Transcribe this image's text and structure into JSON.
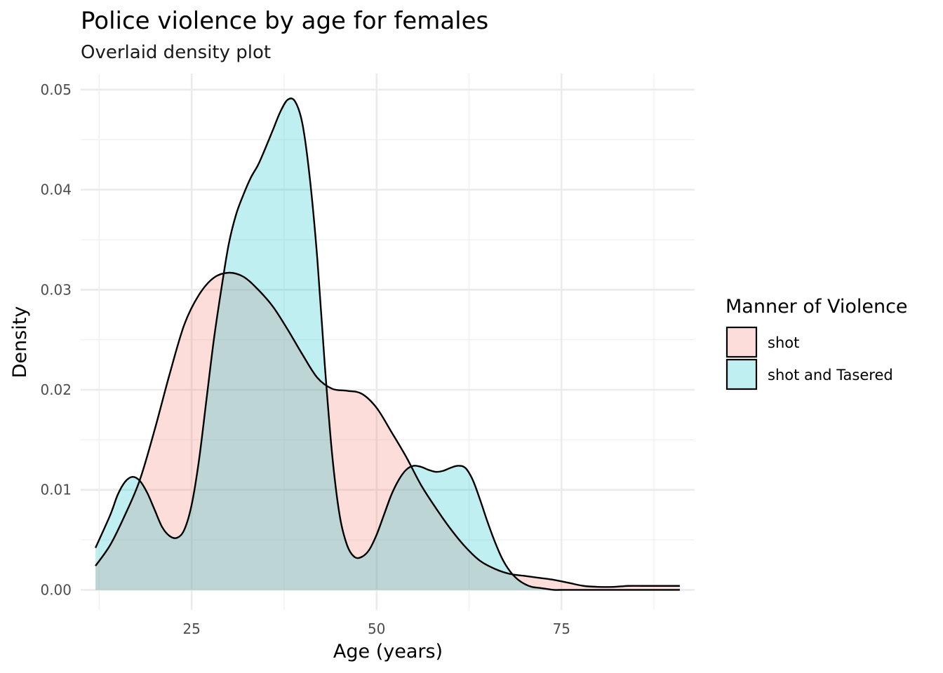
{
  "chart_data": {
    "type": "area",
    "title": "Police violence by age for females",
    "subtitle": "Overlaid density plot",
    "xlabel": "Age (years)",
    "ylabel": "Density",
    "xlim": [
      10,
      93
    ],
    "ylim": [
      -0.002,
      0.0516
    ],
    "x_ticks": [
      25,
      50,
      75
    ],
    "y_ticks": [
      0.0,
      0.01,
      0.02,
      0.03,
      0.04,
      0.05
    ],
    "x_tick_labels": [
      "25",
      "50",
      "75"
    ],
    "y_tick_labels": [
      "0.00",
      "0.01",
      "0.02",
      "0.03",
      "0.04",
      "0.05"
    ],
    "grid": true,
    "legend": {
      "title": "Manner of Violence",
      "placement": "right"
    },
    "series": [
      {
        "name": "shot",
        "color": "#F8766D",
        "x": [
          12,
          14,
          16,
          18,
          20,
          22,
          24,
          26,
          28,
          30,
          32,
          34,
          36,
          38,
          40,
          42,
          44,
          46,
          48,
          50,
          52,
          54,
          56,
          58,
          60,
          62,
          64,
          66,
          68,
          70,
          72,
          74,
          76,
          78,
          80,
          82,
          84,
          86,
          88,
          90,
          91
        ],
        "values": [
          0.0024,
          0.0045,
          0.0075,
          0.011,
          0.016,
          0.0215,
          0.0265,
          0.0295,
          0.0312,
          0.0317,
          0.0313,
          0.03,
          0.0283,
          0.026,
          0.0235,
          0.0212,
          0.0201,
          0.0199,
          0.0196,
          0.0182,
          0.0158,
          0.0133,
          0.0105,
          0.0082,
          0.0061,
          0.0043,
          0.0029,
          0.0021,
          0.0016,
          0.0014,
          0.0012,
          0.001,
          0.0007,
          0.0004,
          0.0003,
          0.0003,
          0.0004,
          0.0004,
          0.0004,
          0.0004,
          0.0004
        ]
      },
      {
        "name": "shot and Tasered",
        "color": "#00BFC4",
        "x": [
          12,
          14,
          15,
          16,
          17,
          18,
          19,
          20,
          21,
          22,
          23,
          24,
          25,
          26,
          27,
          28,
          29,
          30,
          31,
          32,
          33,
          34,
          35,
          36,
          37,
          38,
          39,
          40,
          41,
          42,
          43,
          44,
          45,
          46,
          47,
          48,
          49,
          50,
          51,
          52,
          53,
          54,
          55,
          56,
          57,
          58,
          59,
          60,
          61,
          62,
          63,
          64,
          65,
          66,
          67,
          68,
          69,
          70,
          71,
          72,
          73,
          74,
          75,
          76,
          78,
          80,
          82,
          84,
          86,
          88,
          90,
          91
        ],
        "values": [
          0.0042,
          0.0075,
          0.0095,
          0.0108,
          0.0113,
          0.0109,
          0.0097,
          0.008,
          0.0063,
          0.0054,
          0.0052,
          0.006,
          0.0085,
          0.013,
          0.019,
          0.025,
          0.03,
          0.0345,
          0.0375,
          0.0395,
          0.0412,
          0.0425,
          0.0442,
          0.046,
          0.0478,
          0.049,
          0.0488,
          0.0465,
          0.041,
          0.033,
          0.0225,
          0.0135,
          0.0075,
          0.0045,
          0.0033,
          0.0033,
          0.004,
          0.0055,
          0.0075,
          0.0095,
          0.011,
          0.012,
          0.0124,
          0.0123,
          0.012,
          0.0118,
          0.0119,
          0.0122,
          0.0124,
          0.0122,
          0.011,
          0.009,
          0.0068,
          0.0048,
          0.0031,
          0.0019,
          0.0011,
          0.0006,
          0.0003,
          0.0002,
          0.0001,
          0.0,
          0.0,
          0.0,
          0.0,
          0.0,
          0.0,
          0.0,
          0.0,
          0.0,
          0.0,
          0.0
        ]
      }
    ]
  }
}
